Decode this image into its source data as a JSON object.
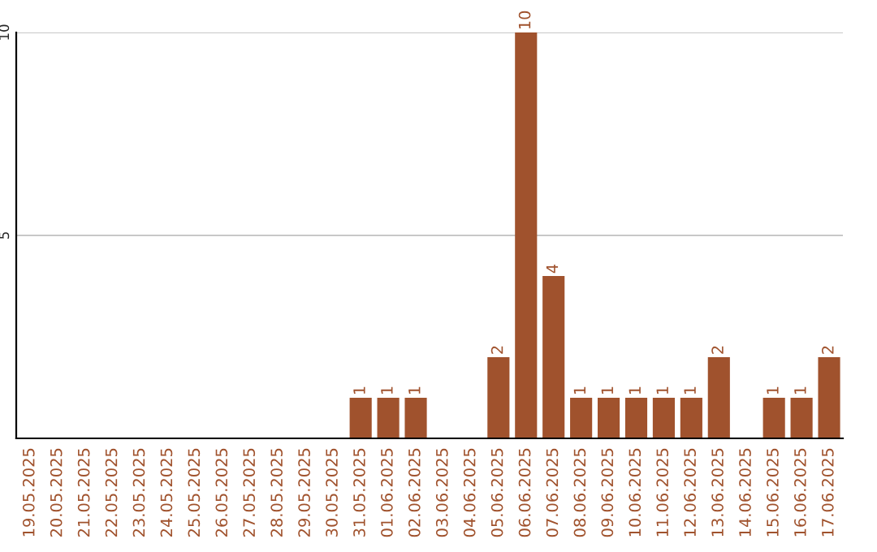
{
  "chart_data": {
    "type": "bar",
    "categories": [
      "19.05.2025",
      "20.05.2025",
      "21.05.2025",
      "22.05.2025",
      "23.05.2025",
      "24.05.2025",
      "25.05.2025",
      "26.05.2025",
      "27.05.2025",
      "28.05.2025",
      "29.05.2025",
      "30.05.2025",
      "31.05.2025",
      "01.06.2025",
      "02.06.2025",
      "03.06.2025",
      "04.06.2025",
      "05.06.2025",
      "06.06.2025",
      "07.06.2025",
      "08.06.2025",
      "09.06.2025",
      "10.06.2025",
      "11.06.2025",
      "12.06.2025",
      "13.06.2025",
      "14.06.2025",
      "15.06.2025",
      "16.06.2025",
      "17.06.2025"
    ],
    "values": [
      0,
      0,
      0,
      0,
      0,
      0,
      0,
      0,
      0,
      0,
      0,
      0,
      1,
      1,
      1,
      0,
      0,
      2,
      10,
      4,
      1,
      1,
      1,
      1,
      1,
      2,
      0,
      1,
      1,
      2
    ],
    "value_labels": [
      null,
      null,
      null,
      null,
      null,
      null,
      null,
      null,
      null,
      null,
      null,
      null,
      "1",
      "1",
      "1",
      null,
      null,
      "2",
      "10",
      "4",
      "1",
      "1",
      "1",
      "1",
      "1",
      "2",
      null,
      "1",
      "1",
      "2"
    ],
    "color": "#a0522d",
    "ylim": [
      0,
      10
    ],
    "yticks": [
      5,
      10
    ],
    "grid": "y"
  }
}
